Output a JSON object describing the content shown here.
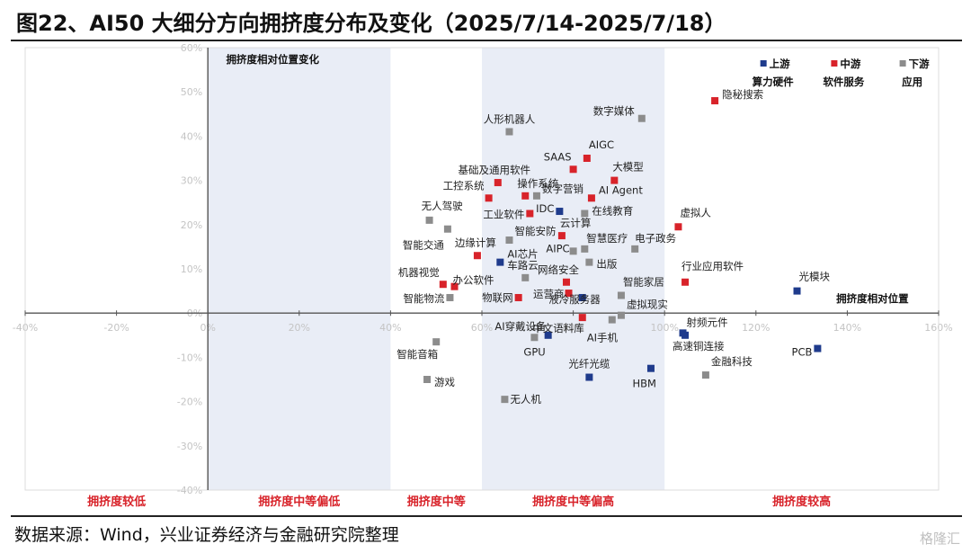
{
  "title": "图22、AI50 大细分方向拥挤度分布及变化（2025/7/14-2025/7/18）",
  "source": "数据来源：Wind，兴业证券经济与金融研究院整理",
  "watermark": "格隆汇",
  "chart_data": {
    "type": "scatter",
    "x_axis_label": "拥挤度相对位置",
    "y_axis_label": "拥挤度相对位置变化",
    "xlim": [
      -40,
      160
    ],
    "ylim": [
      -40,
      60
    ],
    "x_ticks": [
      "-40%",
      "-20%",
      "0%",
      "20%",
      "40%",
      "60%",
      "80%",
      "100%",
      "120%",
      "140%",
      "160%"
    ],
    "y_ticks": [
      "60%",
      "50%",
      "40%",
      "30%",
      "20%",
      "10%",
      "0%",
      "-10%",
      "-20%",
      "-30%",
      "-40%"
    ],
    "bands": [
      {
        "label": "拥挤度较低",
        "range": [
          -40,
          0
        ],
        "shaded": false
      },
      {
        "label": "拥挤度中等偏低",
        "range": [
          0,
          40
        ],
        "shaded": true
      },
      {
        "label": "拥挤度中等",
        "range": [
          40,
          60
        ],
        "shaded": false
      },
      {
        "label": "拥挤度中等偏高",
        "range": [
          60,
          100
        ],
        "shaded": true
      },
      {
        "label": "拥挤度较高",
        "range": [
          100,
          160
        ],
        "shaded": false
      }
    ],
    "colors": {
      "upstream": "#1f3b8c",
      "midstream": "#d8232a",
      "downstream": "#8c8c8c",
      "band_fill": "#e9edf6"
    },
    "legend": [
      {
        "key": "upstream",
        "name": "上游",
        "sub": "算力硬件"
      },
      {
        "key": "midstream",
        "name": "中游",
        "sub": "软件服务"
      },
      {
        "key": "downstream",
        "name": "下游",
        "sub": "应用"
      }
    ],
    "points": [
      {
        "name": "隐秘搜索",
        "x": 111,
        "y": 48,
        "group": "midstream"
      },
      {
        "name": "数字媒体",
        "x": 95,
        "y": 44,
        "group": "downstream"
      },
      {
        "name": "人形机器人",
        "x": 66,
        "y": 41,
        "group": "downstream"
      },
      {
        "name": "AIGC",
        "x": 83,
        "y": 35,
        "group": "midstream"
      },
      {
        "name": "SAAS",
        "x": 80,
        "y": 32.5,
        "group": "midstream"
      },
      {
        "name": "大模型",
        "x": 89,
        "y": 30,
        "group": "midstream"
      },
      {
        "name": "基础及通用软件",
        "x": 63.5,
        "y": 29.5,
        "group": "midstream"
      },
      {
        "name": "工控系统",
        "x": 61.5,
        "y": 26,
        "group": "midstream"
      },
      {
        "name": "操作系统",
        "x": 69.5,
        "y": 26.5,
        "group": "midstream"
      },
      {
        "name": "数字营销",
        "x": 72,
        "y": 26.5,
        "group": "downstream"
      },
      {
        "name": "AI Agent",
        "x": 84,
        "y": 26,
        "group": "midstream"
      },
      {
        "name": "IDC",
        "x": 77,
        "y": 23,
        "group": "upstream"
      },
      {
        "name": "工业软件",
        "x": 70.5,
        "y": 22.5,
        "group": "midstream"
      },
      {
        "name": "在线教育",
        "x": 82.5,
        "y": 22.5,
        "group": "downstream"
      },
      {
        "name": "无人驾驶",
        "x": 48.5,
        "y": 21,
        "group": "downstream"
      },
      {
        "name": "智能交通",
        "x": 52.5,
        "y": 19,
        "group": "downstream"
      },
      {
        "name": "虚拟人",
        "x": 103,
        "y": 19.5,
        "group": "midstream"
      },
      {
        "name": "云计算",
        "x": 77.5,
        "y": 17.5,
        "group": "midstream"
      },
      {
        "name": "智能安防",
        "x": 66,
        "y": 16.5,
        "group": "downstream"
      },
      {
        "name": "智慧医疗",
        "x": 82.5,
        "y": 14.5,
        "group": "downstream"
      },
      {
        "name": "电子政务",
        "x": 93.5,
        "y": 14.5,
        "group": "downstream"
      },
      {
        "name": "AIPC",
        "x": 80,
        "y": 14,
        "group": "downstream"
      },
      {
        "name": "边缘计算",
        "x": 59,
        "y": 13,
        "group": "midstream"
      },
      {
        "name": "AI芯片",
        "x": 64,
        "y": 11.5,
        "group": "upstream"
      },
      {
        "name": "出版",
        "x": 83.5,
        "y": 11.5,
        "group": "downstream"
      },
      {
        "name": "车路云",
        "x": 69.5,
        "y": 8,
        "group": "downstream"
      },
      {
        "name": "行业应用软件",
        "x": 104.5,
        "y": 7,
        "group": "midstream"
      },
      {
        "name": "网络安全",
        "x": 78.5,
        "y": 7,
        "group": "midstream"
      },
      {
        "name": "机器视觉",
        "x": 51.5,
        "y": 6.5,
        "group": "midstream"
      },
      {
        "name": "办公软件",
        "x": 54,
        "y": 6,
        "group": "midstream"
      },
      {
        "name": "光模块",
        "x": 129,
        "y": 5,
        "group": "upstream"
      },
      {
        "name": "运营商",
        "x": 79,
        "y": 4.5,
        "group": "midstream"
      },
      {
        "name": "智能家居",
        "x": 90.5,
        "y": 4,
        "group": "downstream"
      },
      {
        "name": "物联网",
        "x": 68,
        "y": 3.5,
        "group": "midstream"
      },
      {
        "name": "智能物流",
        "x": 53,
        "y": 3.5,
        "group": "downstream"
      },
      {
        "name": "液冷服务器",
        "x": 82,
        "y": 3.5,
        "group": "upstream"
      },
      {
        "name": "虚拟现实",
        "x": 90.5,
        "y": -0.5,
        "group": "downstream"
      },
      {
        "name": "中文语料库",
        "x": 82,
        "y": -1,
        "group": "midstream"
      },
      {
        "name": "AI手机",
        "x": 88.5,
        "y": -1.5,
        "group": "downstream"
      },
      {
        "name": "射频元件",
        "x": 104,
        "y": -4.5,
        "group": "upstream"
      },
      {
        "name": "AI穿戴设备",
        "x": 74.5,
        "y": -5,
        "group": "upstream"
      },
      {
        "name": "高速铜连接",
        "x": 104.5,
        "y": -5,
        "group": "upstream"
      },
      {
        "name": "GPU",
        "x": 71.5,
        "y": -5.5,
        "group": "downstream"
      },
      {
        "name": "智能音箱",
        "x": 50,
        "y": -6.5,
        "group": "downstream"
      },
      {
        "name": "PCB",
        "x": 133.5,
        "y": -8,
        "group": "upstream"
      },
      {
        "name": "HBM",
        "x": 97,
        "y": -12.5,
        "group": "upstream"
      },
      {
        "name": "金融科技",
        "x": 109,
        "y": -14,
        "group": "downstream"
      },
      {
        "name": "光纤光缆",
        "x": 83.5,
        "y": -14.5,
        "group": "upstream"
      },
      {
        "name": "游戏",
        "x": 48,
        "y": -15,
        "group": "downstream"
      },
      {
        "name": "无人机",
        "x": 65,
        "y": -19.5,
        "group": "downstream"
      }
    ]
  }
}
